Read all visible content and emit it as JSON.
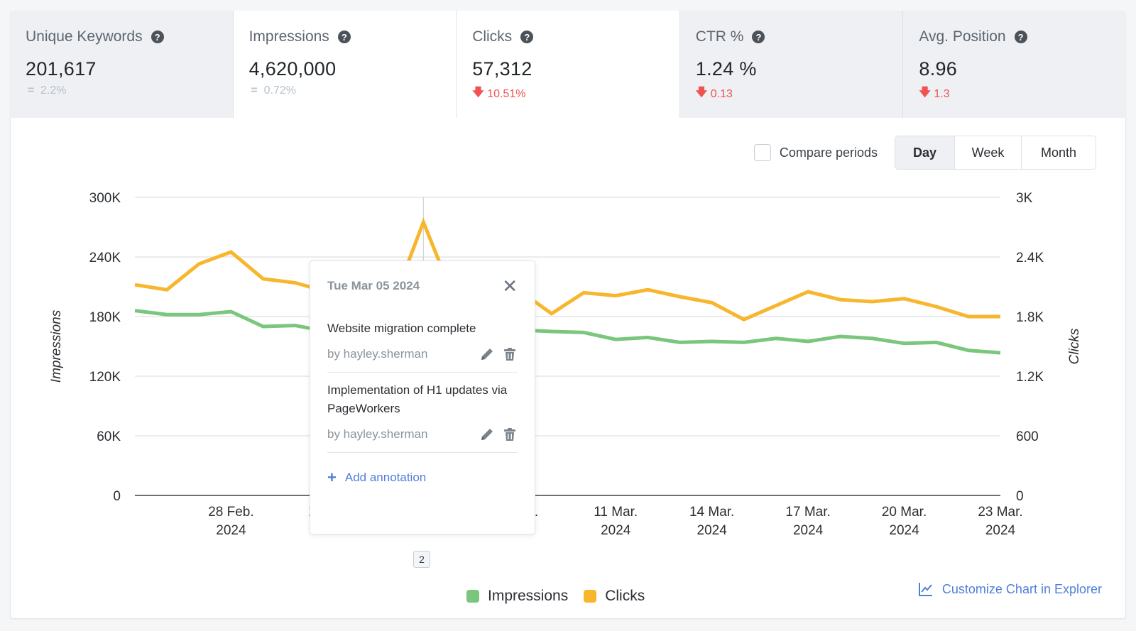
{
  "metrics": [
    {
      "title": "Unique Keywords",
      "value": "201,617",
      "delta": "2.2%",
      "trend": "neutral",
      "active": false
    },
    {
      "title": "Impressions",
      "value": "4,620,000",
      "delta": "0.72%",
      "trend": "neutral",
      "active": true
    },
    {
      "title": "Clicks",
      "value": "57,312",
      "delta": "10.51%",
      "trend": "down",
      "active": true
    },
    {
      "title": "CTR %",
      "value": "1.24 %",
      "delta": "0.13",
      "trend": "down",
      "active": false
    },
    {
      "title": "Avg. Position",
      "value": "8.96",
      "delta": "1.3",
      "trend": "down",
      "active": false
    }
  ],
  "icons": {
    "help": "question-circle-icon",
    "neutral": "equals-icon",
    "down": "arrow-down-icon"
  },
  "controls": {
    "compare_label": "Compare periods",
    "periods": [
      "Day",
      "Week",
      "Month"
    ],
    "selected_period": "Day"
  },
  "popover": {
    "date": "Tue Mar 05 2024",
    "annotations": [
      {
        "text": "Website migration complete",
        "author": "by hayley.sherman"
      },
      {
        "text": "Implementation of H1 updates via PageWorkers",
        "author": "by hayley.sherman"
      }
    ],
    "add_label": "Add annotation"
  },
  "annotation_count": "2",
  "legend": [
    {
      "label": "Impressions",
      "color": "#7ac67c"
    },
    {
      "label": "Clicks",
      "color": "#f8b62d"
    }
  ],
  "customize_label": "Customize Chart in Explorer",
  "chart_data": {
    "type": "line",
    "x": [
      "2024-02-25",
      "2024-02-26",
      "2024-02-27",
      "2024-02-28",
      "2024-02-29",
      "2024-03-01",
      "2024-03-02",
      "2024-03-03",
      "2024-03-04",
      "2024-03-05",
      "2024-03-06",
      "2024-03-07",
      "2024-03-08",
      "2024-03-09",
      "2024-03-10",
      "2024-03-11",
      "2024-03-12",
      "2024-03-13",
      "2024-03-14",
      "2024-03-15",
      "2024-03-16",
      "2024-03-17",
      "2024-03-18",
      "2024-03-19",
      "2024-03-20",
      "2024-03-21",
      "2024-03-22",
      "2024-03-23"
    ],
    "xtick_labels": [
      {
        "date": "2024-02-28",
        "lines": [
          "28 Feb.",
          "2024"
        ]
      },
      {
        "date": "2024-03-02",
        "lines": [
          "2 Mar.",
          "2024"
        ]
      },
      {
        "date": "2024-03-08",
        "lines": [
          "8 Mar.",
          "2024"
        ]
      },
      {
        "date": "2024-03-11",
        "lines": [
          "11 Mar.",
          "2024"
        ]
      },
      {
        "date": "2024-03-14",
        "lines": [
          "14 Mar.",
          "2024"
        ]
      },
      {
        "date": "2024-03-17",
        "lines": [
          "17 Mar.",
          "2024"
        ]
      },
      {
        "date": "2024-03-20",
        "lines": [
          "20 Mar.",
          "2024"
        ]
      },
      {
        "date": "2024-03-23",
        "lines": [
          "23 Mar.",
          "2024"
        ]
      }
    ],
    "series": [
      {
        "name": "Impressions",
        "axis": "left",
        "color": "#7ac67c",
        "values": [
          186000,
          182000,
          182000,
          185000,
          170000,
          171000,
          165000,
          164000,
          166000,
          166500,
          167000,
          166000,
          166500,
          165000,
          164000,
          157000,
          159000,
          154000,
          155000,
          154000,
          158000,
          155000,
          160000,
          158000,
          153000,
          154000,
          146000,
          143500
        ]
      },
      {
        "name": "Clicks",
        "axis": "right",
        "color": "#f8b62d",
        "values": [
          2120,
          2070,
          2330,
          2450,
          2180,
          2140,
          2050,
          2000,
          1900,
          2750,
          1950,
          2010,
          2060,
          1830,
          2040,
          2010,
          2070,
          2000,
          1940,
          1770,
          1910,
          2050,
          1970,
          1950,
          1980,
          1900,
          1800,
          1800
        ]
      }
    ],
    "left_axis": {
      "title": "Impressions",
      "min": 0,
      "max": 300000,
      "ticks": [
        "0",
        "60K",
        "120K",
        "180K",
        "240K",
        "300K"
      ]
    },
    "right_axis": {
      "title": "Clicks",
      "min": 0,
      "max": 3000,
      "ticks": [
        "0",
        "600",
        "1.2K",
        "1.8K",
        "2.4K",
        "3K"
      ]
    },
    "marker_date": "2024-03-05",
    "grid": true,
    "legend_position": "bottom-center"
  }
}
